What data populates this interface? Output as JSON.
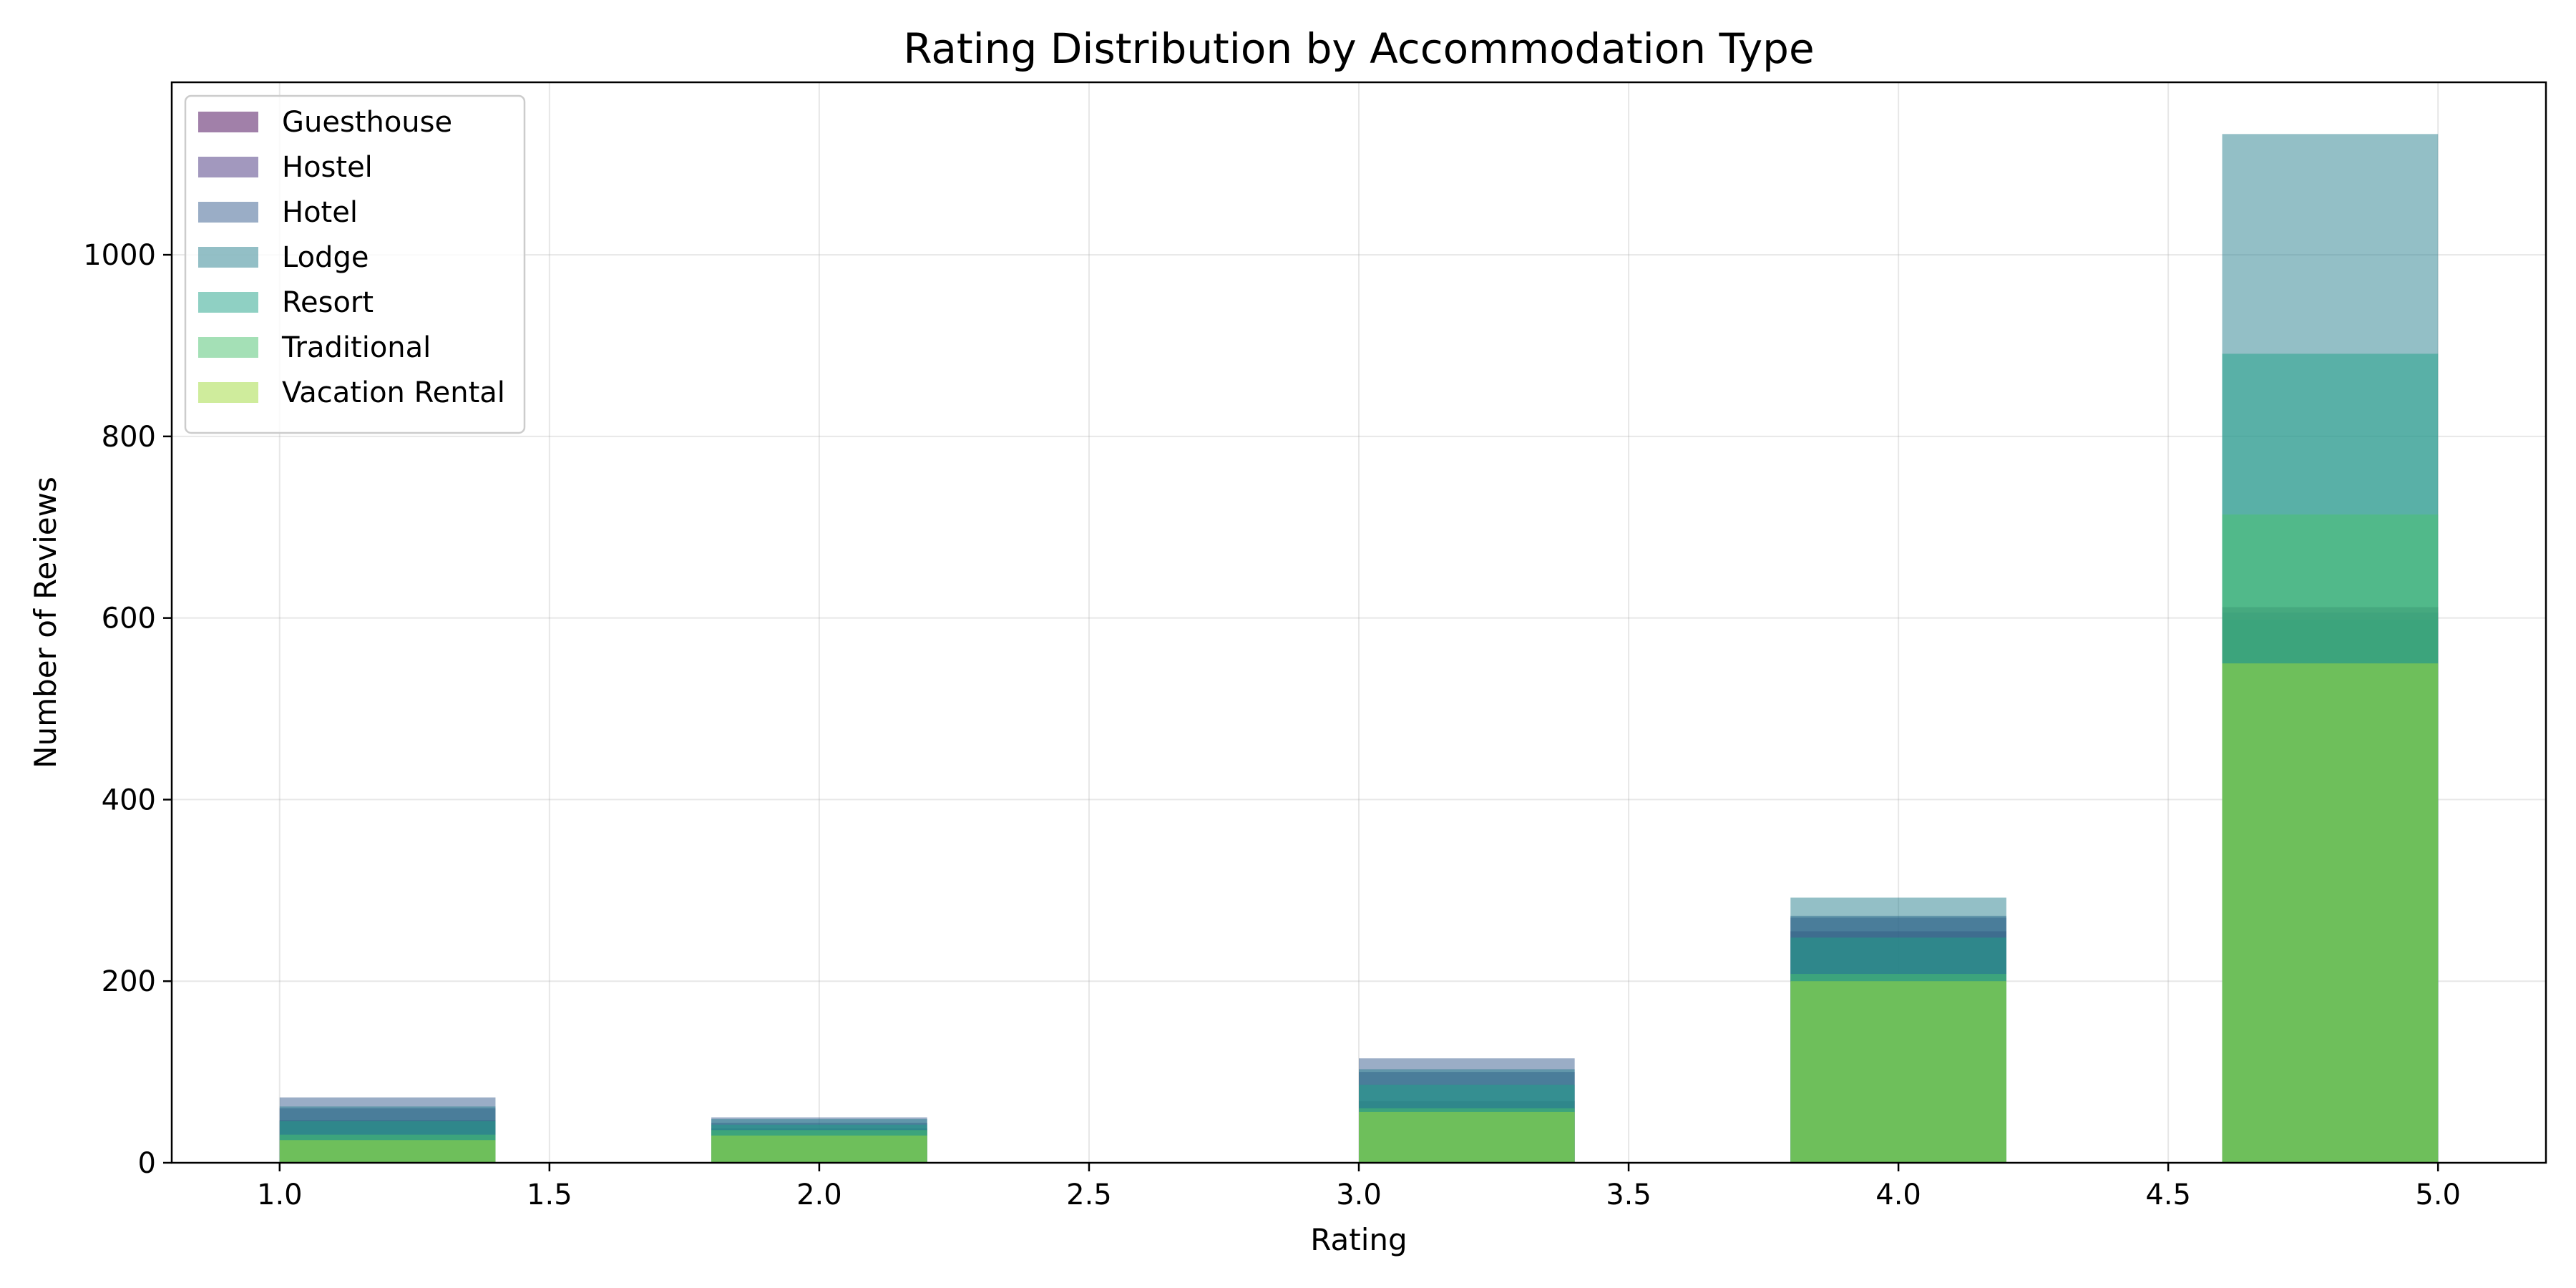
{
  "chart_data": {
    "type": "bar",
    "title": "Rating Distribution by Accommodation Type",
    "xlabel": "Rating",
    "ylabel": "Number of Reviews",
    "xlim": [
      0.8,
      5.2
    ],
    "ylim": [
      0,
      1190
    ],
    "xticks": [
      1.0,
      1.5,
      2.0,
      2.5,
      3.0,
      3.5,
      4.0,
      4.5,
      5.0
    ],
    "xtick_labels": [
      "1.0",
      "1.5",
      "2.0",
      "2.5",
      "3.0",
      "3.5",
      "4.0",
      "4.5",
      "5.0"
    ],
    "yticks": [
      0,
      200,
      400,
      600,
      800,
      1000
    ],
    "ytick_labels": [
      "0",
      "200",
      "400",
      "600",
      "800",
      "1000"
    ],
    "grid": true,
    "legend_position": "top-left",
    "overlay": true,
    "bins": [
      {
        "from": 1.0,
        "to": 1.4
      },
      {
        "from": 1.8,
        "to": 2.2
      },
      {
        "from": 3.0,
        "to": 3.4
      },
      {
        "from": 3.8,
        "to": 4.2
      },
      {
        "from": 4.6,
        "to": 5.0
      }
    ],
    "series": [
      {
        "name": "Guesthouse",
        "color": "#440154",
        "values": [
          47,
          38,
          68,
          255,
          612
        ]
      },
      {
        "name": "Hostel",
        "color": "#46327e",
        "values": [
          60,
          44,
          100,
          270,
          606
        ]
      },
      {
        "name": "Hotel",
        "color": "#365c8d",
        "values": [
          72,
          50,
          115,
          272,
          598
        ]
      },
      {
        "name": "Lodge",
        "color": "#277f8e",
        "values": [
          62,
          48,
          103,
          292,
          1133
        ]
      },
      {
        "name": "Resort",
        "color": "#1fa187",
        "values": [
          46,
          42,
          86,
          248,
          891
        ]
      },
      {
        "name": "Traditional",
        "color": "#4ac16d",
        "values": [
          31,
          36,
          60,
          208,
          714
        ]
      },
      {
        "name": "Vacation Rental",
        "color": "#a0da39",
        "values": [
          25,
          30,
          56,
          200,
          550
        ]
      }
    ]
  }
}
